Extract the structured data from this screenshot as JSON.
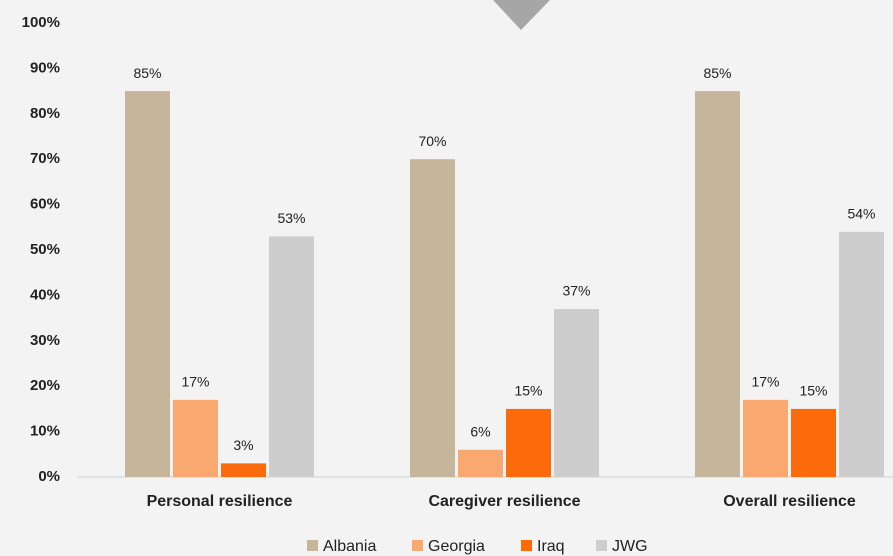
{
  "chart_data": {
    "type": "bar",
    "categories": [
      "Personal resilience",
      "Caregiver resilience",
      "Overall resilience"
    ],
    "series": [
      {
        "name": "Albania",
        "color": "#c5b59b",
        "values": [
          85,
          70,
          85
        ],
        "value_labels": [
          "85%",
          "70%",
          "85%"
        ]
      },
      {
        "name": "Georgia",
        "color": "#f9a96f",
        "values": [
          17,
          6,
          17
        ],
        "value_labels": [
          "17%",
          "6%",
          "17%"
        ]
      },
      {
        "name": "Iraq",
        "color": "#fb6a0b",
        "values": [
          3,
          15,
          15
        ],
        "value_labels": [
          "3%",
          "15%",
          "15%"
        ]
      },
      {
        "name": "JWG",
        "color": "#cdcdcd",
        "values": [
          53,
          37,
          54
        ],
        "value_labels": [
          "53%",
          "37%",
          "54%"
        ]
      }
    ],
    "ylim": [
      0,
      100
    ],
    "yticks": [
      {
        "value": 0,
        "label": "0%"
      },
      {
        "value": 10,
        "label": "10%"
      },
      {
        "value": 20,
        "label": "20%"
      },
      {
        "value": 30,
        "label": "30%"
      },
      {
        "value": 40,
        "label": "40%"
      },
      {
        "value": 50,
        "label": "50%"
      },
      {
        "value": 60,
        "label": "60%"
      },
      {
        "value": 70,
        "label": "70%"
      },
      {
        "value": 80,
        "label": "80%"
      },
      {
        "value": 90,
        "label": "90%"
      },
      {
        "value": 100,
        "label": "100%"
      }
    ],
    "grid": false,
    "legend": "bottom"
  }
}
